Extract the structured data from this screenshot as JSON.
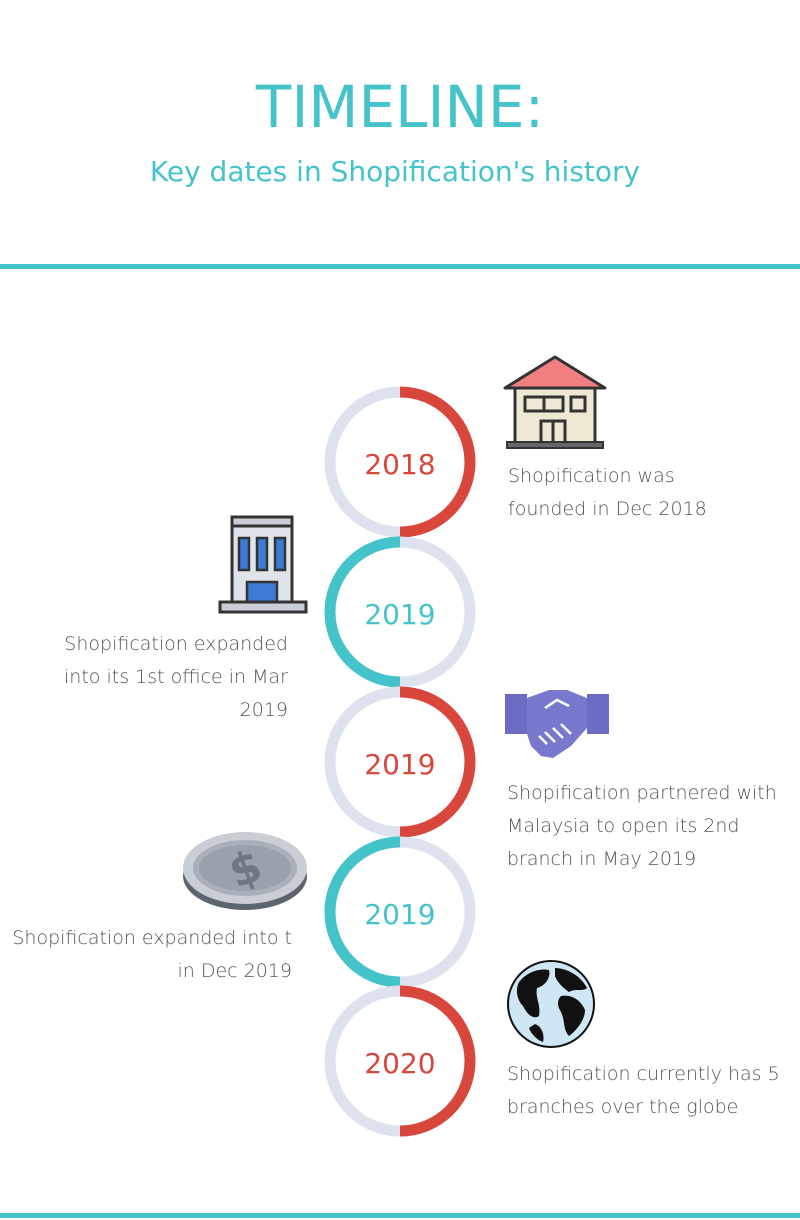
{
  "header": {
    "title": "TIMELINE:",
    "subtitle": "Key dates in Shopification's history"
  },
  "colors": {
    "teal": "#45c3cb",
    "red": "#d9463b",
    "ring_gray": "#dde2ee"
  },
  "events": [
    {
      "year": "2018",
      "accent": "red",
      "side": "right",
      "icon": "house-icon",
      "lines": [
        "Shopification was",
        "founded in Dec 2018"
      ]
    },
    {
      "year": "2019",
      "accent": "teal",
      "side": "left",
      "icon": "office-building-icon",
      "lines": [
        "Shopification expanded",
        "into its 1st office in Mar",
        "2019"
      ]
    },
    {
      "year": "2019",
      "accent": "red",
      "side": "right",
      "icon": "handshake-icon",
      "lines": [
        "Shopification partnered with",
        "Malaysia to open its 2nd",
        "branch in May 2019"
      ]
    },
    {
      "year": "2019",
      "accent": "teal",
      "side": "left",
      "icon": "coin-icon",
      "lines": [
        "Shopification expanded into t",
        "in Dec 2019"
      ]
    },
    {
      "year": "2020",
      "accent": "red",
      "side": "right",
      "icon": "globe-icon",
      "lines": [
        "Shopification currently has 5",
        "branches over the globe"
      ]
    }
  ]
}
